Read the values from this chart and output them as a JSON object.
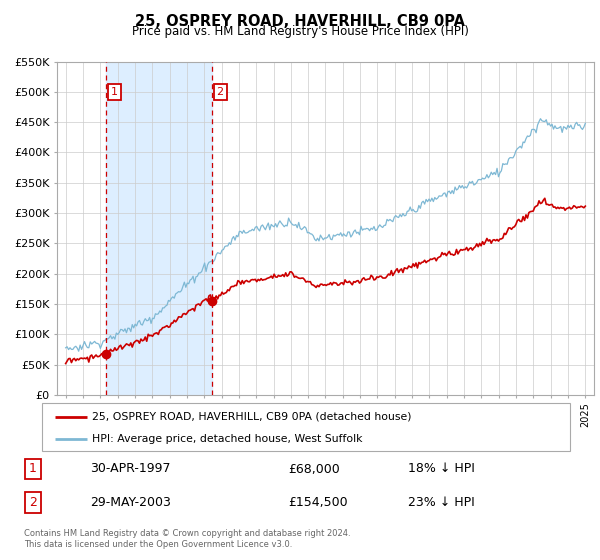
{
  "title": "25, OSPREY ROAD, HAVERHILL, CB9 0PA",
  "subtitle": "Price paid vs. HM Land Registry's House Price Index (HPI)",
  "legend_line1": "25, OSPREY ROAD, HAVERHILL, CB9 0PA (detached house)",
  "legend_line2": "HPI: Average price, detached house, West Suffolk",
  "sale1_date": "30-APR-1997",
  "sale1_price": "£68,000",
  "sale1_hpi": "18% ↓ HPI",
  "sale1_year": 1997.33,
  "sale1_value": 68000,
  "sale2_date": "29-MAY-2003",
  "sale2_price": "£154,500",
  "sale2_hpi": "23% ↓ HPI",
  "sale2_year": 2003.42,
  "sale2_value": 154500,
  "footer_line1": "Contains HM Land Registry data © Crown copyright and database right 2024.",
  "footer_line2": "This data is licensed under the Open Government Licence v3.0.",
  "hpi_color": "#7eb8d4",
  "price_color": "#cc0000",
  "shade_color": "#ddeeff",
  "vline_color": "#cc0000",
  "ylim": [
    0,
    550000
  ],
  "xlim_start": 1994.5,
  "xlim_end": 2025.5,
  "hpi_noise_std": 3500,
  "price_noise_std": 2500
}
